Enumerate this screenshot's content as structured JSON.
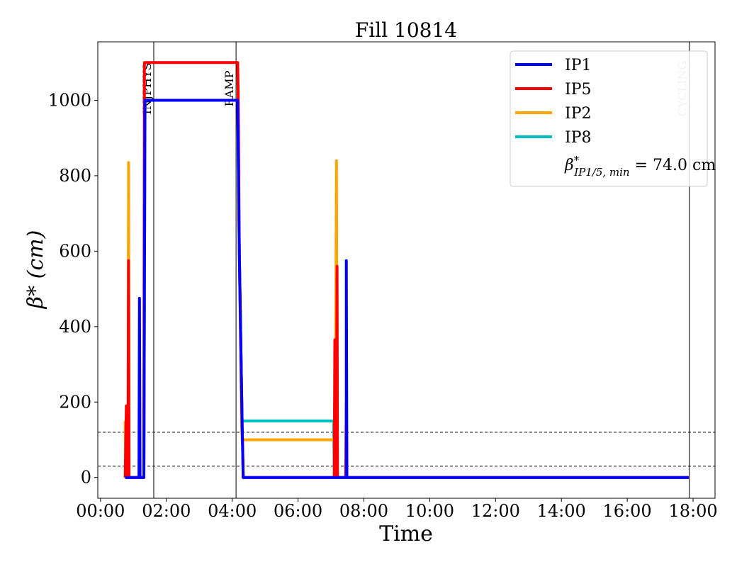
{
  "chart_data": {
    "type": "line",
    "title": "Fill 10814",
    "xlabel": "Time",
    "ylabel": "β* (cm)",
    "xlim": [
      "-00:05",
      "18:40"
    ],
    "ylim": [
      -55,
      1155
    ],
    "xticks": [
      "00:00",
      "02:00",
      "04:00",
      "06:00",
      "08:00",
      "10:00",
      "12:00",
      "14:00",
      "16:00",
      "18:00"
    ],
    "yticks": [
      0,
      200,
      400,
      600,
      800,
      1000
    ],
    "grid": false,
    "legend_position": "top-right",
    "legend_extra": {
      "prefix": "β",
      "sup": "*",
      "sub": "IP1/5, min",
      "text": " = 74.0 cm"
    },
    "vlines": [
      {
        "x": "01:37",
        "label": "INJPHYS"
      },
      {
        "x": "04:07",
        "label": "RAMP"
      },
      {
        "x": "17:53",
        "label": "CYCLING"
      }
    ],
    "hlines": [
      30,
      120
    ],
    "series": [
      {
        "name": "IP1",
        "color": "#0000ff",
        "points": [
          [
            "00:45",
            0
          ],
          [
            "01:10",
            0
          ],
          [
            "01:11",
            475
          ],
          [
            "01:12",
            0
          ],
          [
            "01:19",
            0
          ],
          [
            "01:21",
            1000
          ],
          [
            "04:10",
            1000
          ],
          [
            "04:13",
            600
          ],
          [
            "04:18",
            150
          ],
          [
            "04:20",
            0
          ],
          [
            "07:28",
            0
          ],
          [
            "07:28",
            575
          ],
          [
            "07:29",
            0
          ],
          [
            "17:52",
            0
          ]
        ]
      },
      {
        "name": "IP5",
        "color": "#ff0000",
        "points": [
          [
            "00:45",
            0
          ],
          [
            "00:47",
            190
          ],
          [
            "00:48",
            0
          ],
          [
            "00:50",
            0
          ],
          [
            "00:51",
            575
          ],
          [
            "00:52",
            0
          ],
          [
            "01:19",
            0
          ],
          [
            "01:20",
            1100
          ],
          [
            "04:10",
            1100
          ],
          [
            "04:11",
            1000
          ],
          [
            "04:13",
            600
          ],
          [
            "04:18",
            150
          ],
          [
            "04:20",
            0
          ],
          [
            "07:06",
            0
          ],
          [
            "07:07",
            365
          ],
          [
            "07:08",
            0
          ],
          [
            "07:10",
            0
          ],
          [
            "07:11",
            560
          ],
          [
            "07:12",
            0
          ],
          [
            "07:27",
            0
          ],
          [
            "07:28",
            200
          ],
          [
            "07:29",
            0
          ],
          [
            "17:52",
            0
          ]
        ]
      },
      {
        "name": "IP2",
        "color": "#ffa500",
        "points": [
          [
            "00:45",
            150
          ],
          [
            "00:46",
            0
          ],
          [
            "00:50",
            0
          ],
          [
            "00:51",
            835
          ],
          [
            "00:52",
            0
          ],
          [
            "01:19",
            0
          ],
          [
            "01:21",
            1000
          ],
          [
            "04:10",
            1000
          ],
          [
            "04:13",
            600
          ],
          [
            "04:17",
            150
          ],
          [
            "04:18",
            100
          ],
          [
            "07:05",
            100
          ],
          [
            "07:08",
            100
          ],
          [
            "07:10",
            840
          ],
          [
            "07:11",
            0
          ],
          [
            "17:52",
            0
          ]
        ]
      },
      {
        "name": "IP8",
        "color": "#00bfbf",
        "points": [
          [
            "00:45",
            0
          ],
          [
            "01:19",
            0
          ],
          [
            "01:21",
            1000
          ],
          [
            "04:10",
            1000
          ],
          [
            "04:13",
            600
          ],
          [
            "04:18",
            150
          ],
          [
            "07:05",
            150
          ],
          [
            "07:06",
            0
          ],
          [
            "17:52",
            0
          ]
        ]
      }
    ]
  }
}
